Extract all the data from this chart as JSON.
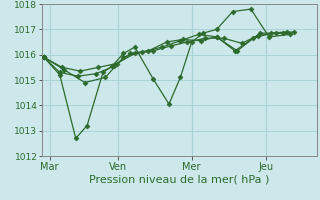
{
  "background_color": "#cce8ea",
  "grid_color": "#aad4d8",
  "line_color": "#2d6a2d",
  "marker_color": "#2d6a2d",
  "xlabel": "Pression niveau de la mer( hPa )",
  "ylim": [
    1012,
    1018
  ],
  "yticks": [
    1012,
    1013,
    1014,
    1015,
    1016,
    1017,
    1018
  ],
  "x_tick_labels": [
    "Mar",
    "Ven",
    "Mer",
    "Jeu"
  ],
  "x_tick_positions": [
    0.25,
    3.25,
    6.5,
    9.75
  ],
  "x_vlines": [
    0.25,
    3.25,
    6.5,
    9.75
  ],
  "xlim": [
    -0.1,
    12.0
  ],
  "series": [
    {
      "x": [
        0,
        0.9,
        1.8,
        2.7,
        3.5,
        4.3,
        5.2,
        6.0,
        6.8,
        7.6,
        8.5,
        9.5,
        10.5
      ],
      "y": [
        1015.9,
        1015.4,
        1014.9,
        1015.1,
        1015.9,
        1016.1,
        1016.3,
        1016.55,
        1016.8,
        1016.7,
        1016.15,
        1016.85,
        1016.85
      ]
    },
    {
      "x": [
        0,
        0.7,
        1.4,
        1.9,
        2.6,
        3.0,
        3.5,
        4.0,
        4.8,
        5.5,
        6.0,
        6.5,
        7.0,
        7.6,
        8.3,
        9.1,
        9.9,
        10.8
      ],
      "y": [
        1015.9,
        1015.2,
        1012.7,
        1013.2,
        1015.3,
        1015.55,
        1016.05,
        1016.3,
        1015.05,
        1014.05,
        1015.1,
        1016.5,
        1016.85,
        1017.0,
        1017.7,
        1017.8,
        1016.7,
        1016.8
      ]
    },
    {
      "x": [
        0,
        0.7,
        1.5,
        2.3,
        3.1,
        3.8,
        4.6,
        5.4,
        6.1,
        6.9,
        7.6,
        8.4,
        9.2,
        10.0,
        10.7
      ],
      "y": [
        1015.9,
        1015.3,
        1015.15,
        1015.25,
        1015.55,
        1016.05,
        1016.15,
        1016.5,
        1016.6,
        1016.55,
        1016.7,
        1016.15,
        1016.65,
        1016.85,
        1016.9
      ]
    },
    {
      "x": [
        0,
        0.8,
        1.6,
        2.4,
        3.2,
        4.0,
        4.8,
        5.6,
        6.3,
        7.1,
        7.9,
        8.7,
        9.4,
        10.2,
        11.0
      ],
      "y": [
        1015.9,
        1015.5,
        1015.35,
        1015.5,
        1015.65,
        1016.05,
        1016.15,
        1016.35,
        1016.5,
        1016.65,
        1016.65,
        1016.45,
        1016.75,
        1016.85,
        1016.9
      ]
    }
  ],
  "marker_style": "D",
  "marker_size": 2.5,
  "linewidth": 0.9,
  "ytick_fontsize": 6.5,
  "xtick_fontsize": 7,
  "xlabel_fontsize": 8
}
